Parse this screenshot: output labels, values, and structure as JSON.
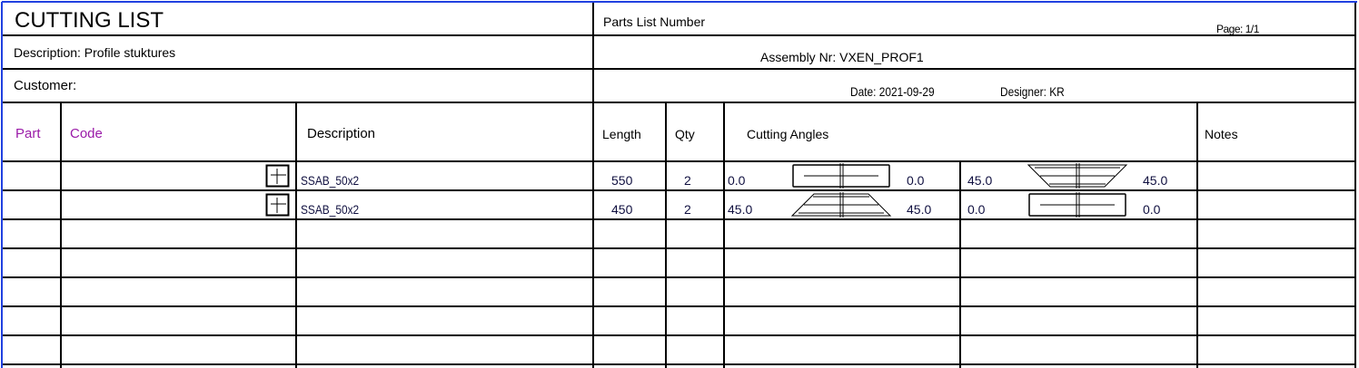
{
  "header": {
    "title": "CUTTING LIST",
    "description": "Description: Profile stuktures",
    "customer": "Customer:",
    "parts_list_number": "Parts List Number",
    "page": "Page: 1/1",
    "assembly": "Assembly Nr: VXEN_PROF1",
    "date": "Date: 2021-09-29",
    "designer": "Designer: KR"
  },
  "columns": {
    "part": "Part",
    "code": "Code",
    "description": "Description",
    "length": "Length",
    "qty": "Qty",
    "cutting_angles": "Cutting Angles",
    "notes": "Notes"
  },
  "colors": {
    "accent_header": "#9a1aa8",
    "border": "#2040e0"
  },
  "rows": [
    {
      "part": "",
      "code": "",
      "profile_icon": "profile-section-icon",
      "description": "SSAB_50x2",
      "length": "550",
      "qty": "2",
      "view1": {
        "left": "0.0",
        "right": "0.0",
        "shape": "rectangle"
      },
      "view2": {
        "left": "45.0",
        "right": "45.0",
        "shape": "trapezoid-wide-top"
      },
      "notes": ""
    },
    {
      "part": "",
      "code": "",
      "profile_icon": "profile-section-icon",
      "description": "SSAB_50x2",
      "length": "450",
      "qty": "2",
      "view1": {
        "left": "45.0",
        "right": "45.0",
        "shape": "trapezoid-wide-bottom"
      },
      "view2": {
        "left": "0.0",
        "right": "0.0",
        "shape": "rectangle"
      },
      "notes": ""
    }
  ]
}
